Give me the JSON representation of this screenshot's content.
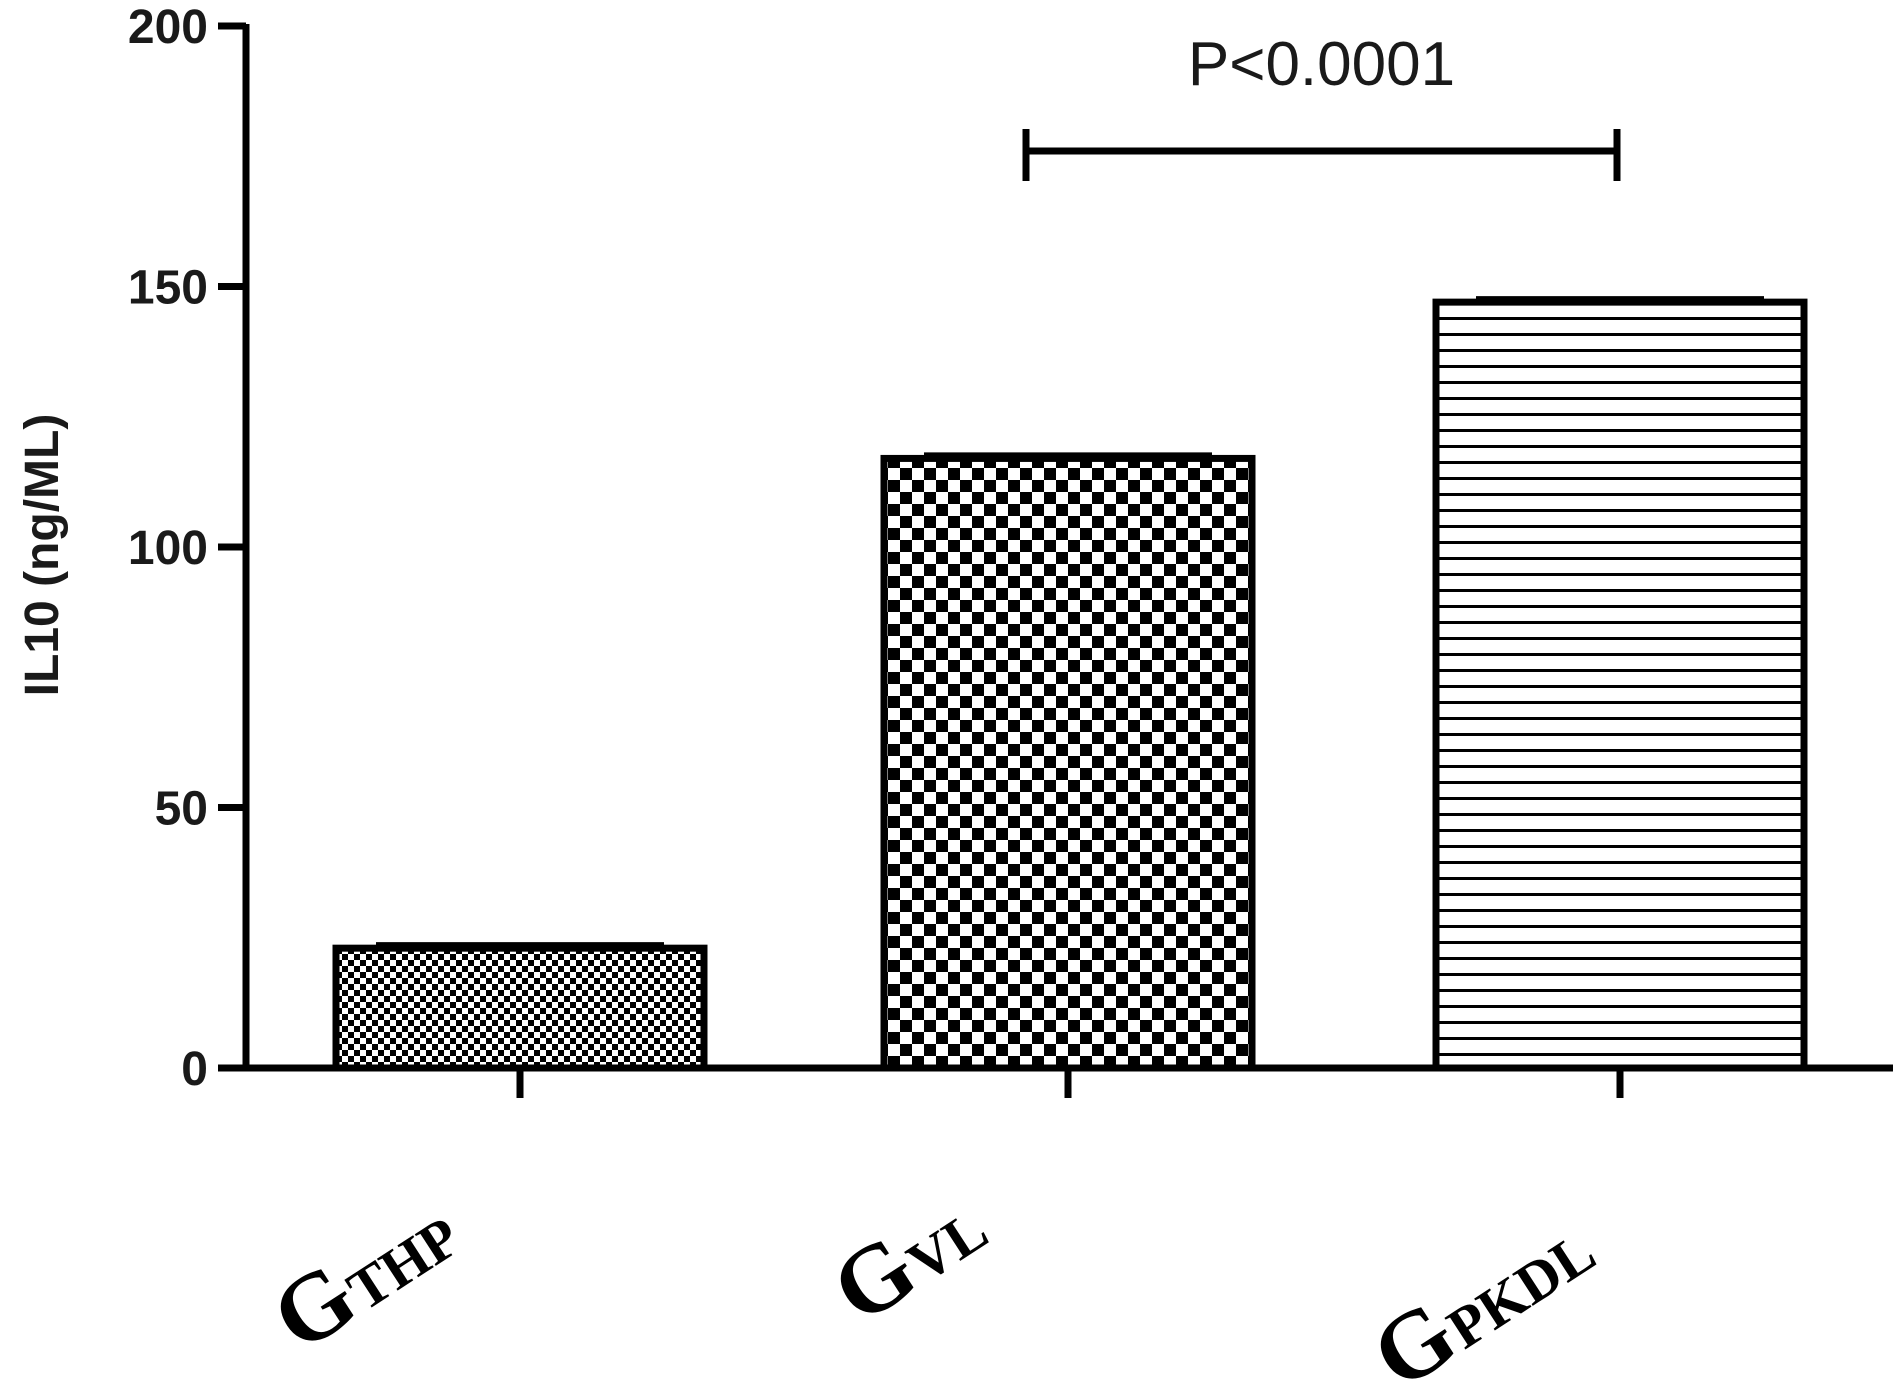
{
  "chart_data": {
    "type": "bar",
    "ylabel": "IL10 (ng/ML)",
    "ylim": [
      0,
      200
    ],
    "yticks": [
      "0",
      "50",
      "100",
      "150",
      "200"
    ],
    "categories": [
      {
        "big": "G",
        "small": "THP"
      },
      {
        "big": "G",
        "small": "VL"
      },
      {
        "big": "G",
        "small": "PKDL"
      }
    ],
    "values": [
      23,
      117,
      147
    ],
    "patterns": [
      "fine-checker",
      "checker",
      "horizontal-lines"
    ],
    "annotation": {
      "text": "P<0.0001",
      "from_category": 1,
      "to_category": 2,
      "y": 176
    },
    "grid": false
  }
}
